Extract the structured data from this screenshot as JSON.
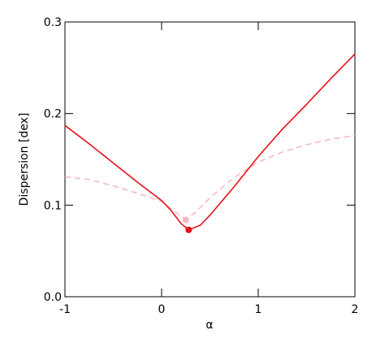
{
  "chart_data": {
    "type": "line",
    "xlabel": "α",
    "ylabel": "Dispersion [dex]",
    "xlim": [
      -1,
      2
    ],
    "xticks": [
      -1,
      0,
      1,
      2
    ],
    "ylim": [
      0,
      0.3
    ],
    "yticks": [
      {
        "value": 0,
        "label": "0.0"
      },
      0.1,
      0.2,
      0.3
    ],
    "series": [
      {
        "color": "#e8101a",
        "dash": false,
        "x": [
          -1,
          -0.75,
          -0.5,
          -0.25,
          0,
          0.1,
          0.2,
          0.28,
          0.4,
          0.5,
          0.75,
          1,
          1.25,
          1.5,
          1.75,
          2
        ],
        "values": [
          0.187,
          0.167,
          0.146,
          0.125,
          0.105,
          0.094,
          0.08,
          0.073,
          0.078,
          0.089,
          0.12,
          0.153,
          0.183,
          0.21,
          0.238,
          0.265
        ]
      },
      {
        "color": "#f7b8c4",
        "dash": true,
        "x": [
          -1,
          -0.75,
          -0.5,
          -0.25,
          0,
          0.1,
          0.2,
          0.25,
          0.35,
          0.5,
          0.75,
          1,
          1.25,
          1.5,
          1.75,
          2
        ],
        "values": [
          0.131,
          0.128,
          0.121,
          0.113,
          0.104,
          0.096,
          0.088,
          0.085,
          0.092,
          0.108,
          0.13,
          0.147,
          0.158,
          0.166,
          0.172,
          0.176
        ]
      }
    ],
    "points": [
      {
        "x": 0.25,
        "y": 0.084,
        "color": "#f7b8c4"
      },
      {
        "x": 0.28,
        "y": 0.073,
        "color": "#e8101a"
      }
    ]
  }
}
